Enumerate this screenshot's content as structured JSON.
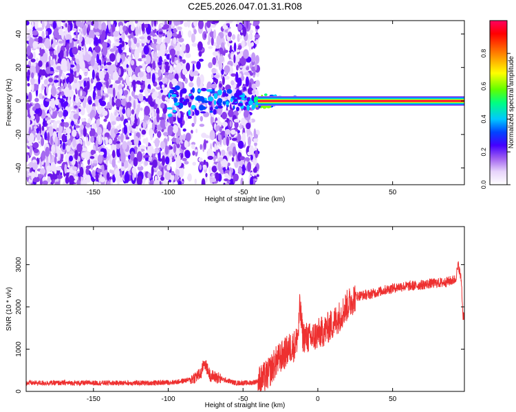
{
  "title": "C2E5.2026.047.01.31.R08",
  "chart_data": [
    {
      "type": "heatmap",
      "xlabel": "Height of straight line (km)",
      "ylabel": "Frequency (Hz)",
      "xlim": [
        -195,
        98
      ],
      "ylim": [
        -50,
        48
      ],
      "xticks": [
        -150,
        -100,
        -50,
        0,
        50
      ],
      "yticks": [
        -40,
        -20,
        0,
        20,
        40
      ],
      "colorbar": {
        "label": "Normalized spectral amplitude",
        "range": [
          0,
          1
        ],
        "ticks": [
          "0.0",
          "0.2",
          "0.4",
          "0.6",
          "0.8"
        ],
        "colormap": [
          "#ffffff",
          "#cfa8f5",
          "#8a2be2",
          "#5a00ff",
          "#0000ff",
          "#00c8ff",
          "#00ff80",
          "#80ff00",
          "#ffff00",
          "#ff8000",
          "#ff0000",
          "#ff0060"
        ]
      },
      "regions": [
        {
          "x": [
            -195,
            -90
          ],
          "description_level": 0.15
        },
        {
          "x": [
            -90,
            -73
          ],
          "description_level": 0.05
        },
        {
          "x": [
            -73,
            -40
          ],
          "description_level": 0.12
        },
        {
          "x": [
            -40,
            98
          ],
          "description_level": 0.0
        }
      ],
      "ridge": {
        "x": [
          -40,
          98
        ],
        "frequency_hz": 0,
        "amplitude": 0.95
      }
    },
    {
      "type": "line",
      "xlabel": "Height of straight line (km)",
      "ylabel": "SNR (10 * v/v)",
      "xlim": [
        -195,
        98
      ],
      "ylim": [
        0,
        3900
      ],
      "xticks": [
        -150,
        -100,
        -50,
        0,
        50
      ],
      "yticks": [
        0,
        1000,
        2000,
        3000
      ],
      "color": "#ee3030",
      "series": [
        {
          "x": [
            -195,
            -150,
            -110,
            -95,
            -85,
            -78,
            -76,
            -72,
            -65,
            -55,
            -45,
            -38,
            -33,
            -28,
            -22,
            -18,
            -15,
            -13,
            -12,
            -10,
            -5,
            0,
            5,
            10,
            15,
            20,
            25,
            35,
            45,
            55,
            65,
            75,
            85,
            92,
            94,
            96,
            97
          ],
          "values": [
            200,
            200,
            200,
            220,
            280,
            420,
            700,
            380,
            300,
            200,
            200,
            260,
            420,
            700,
            900,
            1050,
            1100,
            1400,
            2000,
            1300,
            1250,
            1350,
            1450,
            1600,
            1800,
            2050,
            2250,
            2300,
            2400,
            2480,
            2500,
            2550,
            2580,
            2650,
            3000,
            2600,
            1800
          ]
        }
      ]
    }
  ]
}
